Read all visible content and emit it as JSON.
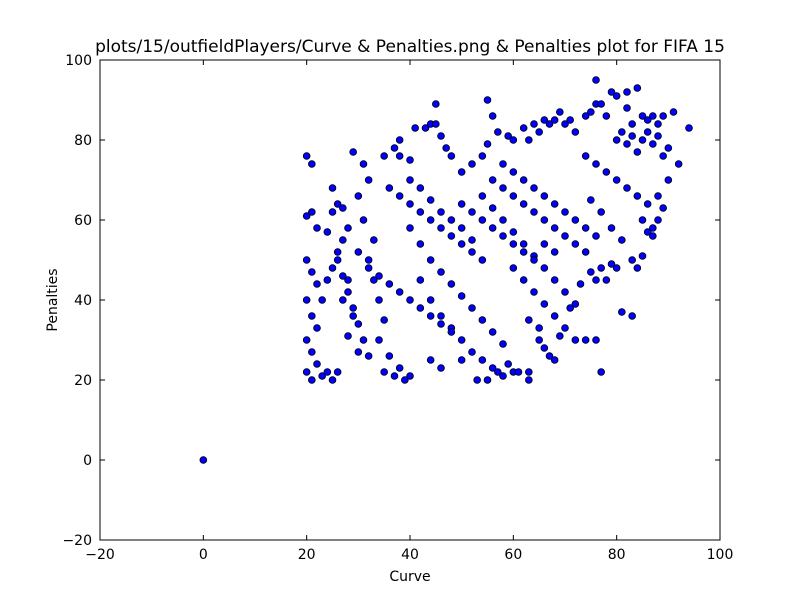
{
  "chart_data": {
    "type": "scatter",
    "title": "plots/15/outfieldPlayers/Curve & Penalties.png & Penalties plot for FIFA 15",
    "xlabel": "Curve",
    "ylabel": "Penalties",
    "xlim": [
      -20,
      100
    ],
    "ylim": [
      -20,
      100
    ],
    "xticks": [
      -20,
      0,
      20,
      40,
      60,
      80,
      100
    ],
    "yticks": [
      -20,
      0,
      20,
      40,
      60,
      80,
      100
    ],
    "xtick_labels": [
      "−20",
      "0",
      "20",
      "40",
      "60",
      "80",
      "100"
    ],
    "ytick_labels": [
      "−20",
      "0",
      "20",
      "40",
      "60",
      "80",
      "100"
    ],
    "grid": false,
    "marker_color": "#0000ff",
    "marker_edge_color": "#000000",
    "series": [
      {
        "points": [
          [
            0,
            0
          ],
          [
            20,
            76
          ],
          [
            21,
            74
          ],
          [
            20,
            61
          ],
          [
            21,
            62
          ],
          [
            22,
            58
          ],
          [
            20,
            50
          ],
          [
            21,
            47
          ],
          [
            22,
            44
          ],
          [
            20,
            40
          ],
          [
            21,
            36
          ],
          [
            22,
            33
          ],
          [
            20,
            30
          ],
          [
            21,
            27
          ],
          [
            22,
            24
          ],
          [
            20,
            22
          ],
          [
            21,
            20
          ],
          [
            23,
            21
          ],
          [
            24,
            22
          ],
          [
            25,
            20
          ],
          [
            26,
            22
          ],
          [
            25,
            62
          ],
          [
            26,
            64
          ],
          [
            24,
            57
          ],
          [
            25,
            68
          ],
          [
            27,
            63
          ],
          [
            28,
            58
          ],
          [
            27,
            55
          ],
          [
            26,
            50
          ],
          [
            28,
            45
          ],
          [
            27,
            40
          ],
          [
            29,
            36
          ],
          [
            28,
            31
          ],
          [
            30,
            27
          ],
          [
            29,
            77
          ],
          [
            31,
            74
          ],
          [
            32,
            70
          ],
          [
            30,
            66
          ],
          [
            31,
            60
          ],
          [
            33,
            55
          ],
          [
            32,
            50
          ],
          [
            33,
            45
          ],
          [
            34,
            40
          ],
          [
            35,
            35
          ],
          [
            34,
            30
          ],
          [
            36,
            26
          ],
          [
            35,
            22
          ],
          [
            37,
            21
          ],
          [
            38,
            23
          ],
          [
            39,
            20
          ],
          [
            40,
            21
          ],
          [
            35,
            76
          ],
          [
            37,
            78
          ],
          [
            38,
            80
          ],
          [
            38,
            76
          ],
          [
            40,
            75
          ],
          [
            41,
            83
          ],
          [
            43,
            83
          ],
          [
            44,
            84
          ],
          [
            45,
            84
          ],
          [
            45,
            89
          ],
          [
            46,
            81
          ],
          [
            47,
            78
          ],
          [
            48,
            76
          ],
          [
            40,
            70
          ],
          [
            42,
            68
          ],
          [
            44,
            65
          ],
          [
            46,
            62
          ],
          [
            48,
            60
          ],
          [
            50,
            58
          ],
          [
            52,
            55
          ],
          [
            40,
            58
          ],
          [
            42,
            54
          ],
          [
            44,
            50
          ],
          [
            46,
            47
          ],
          [
            48,
            44
          ],
          [
            50,
            41
          ],
          [
            52,
            38
          ],
          [
            54,
            35
          ],
          [
            56,
            32
          ],
          [
            58,
            29
          ],
          [
            42,
            45
          ],
          [
            44,
            40
          ],
          [
            46,
            36
          ],
          [
            48,
            33
          ],
          [
            50,
            30
          ],
          [
            52,
            27
          ],
          [
            54,
            25
          ],
          [
            56,
            23
          ],
          [
            58,
            21
          ],
          [
            60,
            22
          ],
          [
            44,
            25
          ],
          [
            46,
            23
          ],
          [
            50,
            25
          ],
          [
            53,
            20
          ],
          [
            55,
            20
          ],
          [
            57,
            22
          ],
          [
            59,
            24
          ],
          [
            61,
            22
          ],
          [
            63,
            20
          ],
          [
            63,
            22
          ],
          [
            50,
            72
          ],
          [
            52,
            74
          ],
          [
            54,
            76
          ],
          [
            55,
            79
          ],
          [
            55,
            90
          ],
          [
            56,
            86
          ],
          [
            57,
            82
          ],
          [
            59,
            81
          ],
          [
            60,
            80
          ],
          [
            62,
            83
          ],
          [
            63,
            80
          ],
          [
            64,
            84
          ],
          [
            65,
            82
          ],
          [
            66,
            85
          ],
          [
            67,
            84
          ],
          [
            68,
            85
          ],
          [
            69,
            87
          ],
          [
            70,
            84
          ],
          [
            71,
            85
          ],
          [
            72,
            82
          ],
          [
            54,
            66
          ],
          [
            56,
            63
          ],
          [
            58,
            60
          ],
          [
            60,
            57
          ],
          [
            62,
            54
          ],
          [
            64,
            51
          ],
          [
            66,
            48
          ],
          [
            68,
            45
          ],
          [
            70,
            42
          ],
          [
            72,
            39
          ],
          [
            56,
            70
          ],
          [
            58,
            68
          ],
          [
            60,
            66
          ],
          [
            62,
            64
          ],
          [
            64,
            62
          ],
          [
            66,
            60
          ],
          [
            68,
            58
          ],
          [
            70,
            56
          ],
          [
            72,
            54
          ],
          [
            74,
            52
          ],
          [
            60,
            48
          ],
          [
            62,
            45
          ],
          [
            64,
            42
          ],
          [
            66,
            39
          ],
          [
            68,
            36
          ],
          [
            70,
            33
          ],
          [
            72,
            30
          ],
          [
            74,
            30
          ],
          [
            65,
            30
          ],
          [
            66,
            28
          ],
          [
            63,
            35
          ],
          [
            65,
            33
          ],
          [
            67,
            26
          ],
          [
            68,
            25
          ],
          [
            69,
            31
          ],
          [
            71,
            38
          ],
          [
            73,
            44
          ],
          [
            75,
            47
          ],
          [
            76,
            45
          ],
          [
            77,
            48
          ],
          [
            74,
            86
          ],
          [
            75,
            87
          ],
          [
            76,
            89
          ],
          [
            76,
            95
          ],
          [
            77,
            89
          ],
          [
            78,
            86
          ],
          [
            79,
            92
          ],
          [
            80,
            91
          ],
          [
            82,
            88
          ],
          [
            82,
            92
          ],
          [
            83,
            84
          ],
          [
            84,
            93
          ],
          [
            85,
            86
          ],
          [
            86,
            85
          ],
          [
            87,
            86
          ],
          [
            88,
            84
          ],
          [
            89,
            86
          ],
          [
            91,
            87
          ],
          [
            92,
            74
          ],
          [
            94,
            83
          ],
          [
            74,
            76
          ],
          [
            76,
            74
          ],
          [
            78,
            72
          ],
          [
            80,
            70
          ],
          [
            82,
            68
          ],
          [
            84,
            66
          ],
          [
            86,
            64
          ],
          [
            88,
            60
          ],
          [
            90,
            70
          ],
          [
            87,
            56
          ],
          [
            75,
            65
          ],
          [
            77,
            62
          ],
          [
            79,
            58
          ],
          [
            81,
            55
          ],
          [
            83,
            50
          ],
          [
            84,
            48
          ],
          [
            85,
            51
          ],
          [
            80,
            48
          ],
          [
            78,
            45
          ],
          [
            79,
            49
          ],
          [
            81,
            37
          ],
          [
            83,
            36
          ],
          [
            76,
            30
          ],
          [
            77,
            22
          ],
          [
            85,
            60
          ],
          [
            86,
            57
          ],
          [
            87,
            58
          ],
          [
            88,
            66
          ],
          [
            89,
            63
          ],
          [
            90,
            78
          ],
          [
            84,
            77
          ],
          [
            85,
            80
          ],
          [
            86,
            82
          ],
          [
            87,
            79
          ],
          [
            88,
            81
          ],
          [
            89,
            76
          ],
          [
            80,
            80
          ],
          [
            81,
            82
          ],
          [
            82,
            79
          ],
          [
            83,
            81
          ],
          [
            36,
            68
          ],
          [
            38,
            66
          ],
          [
            40,
            64
          ],
          [
            42,
            62
          ],
          [
            44,
            60
          ],
          [
            46,
            58
          ],
          [
            48,
            56
          ],
          [
            50,
            54
          ],
          [
            52,
            52
          ],
          [
            54,
            50
          ],
          [
            30,
            52
          ],
          [
            32,
            48
          ],
          [
            34,
            46
          ],
          [
            36,
            44
          ],
          [
            38,
            42
          ],
          [
            40,
            40
          ],
          [
            42,
            38
          ],
          [
            44,
            36
          ],
          [
            46,
            34
          ],
          [
            48,
            32
          ],
          [
            23,
            40
          ],
          [
            24,
            45
          ],
          [
            25,
            48
          ],
          [
            26,
            52
          ],
          [
            27,
            46
          ],
          [
            28,
            42
          ],
          [
            29,
            38
          ],
          [
            30,
            34
          ],
          [
            31,
            30
          ],
          [
            32,
            26
          ],
          [
            58,
            74
          ],
          [
            60,
            72
          ],
          [
            62,
            70
          ],
          [
            64,
            68
          ],
          [
            66,
            66
          ],
          [
            68,
            64
          ],
          [
            70,
            62
          ],
          [
            72,
            60
          ],
          [
            74,
            58
          ],
          [
            76,
            56
          ],
          [
            50,
            64
          ],
          [
            52,
            62
          ],
          [
            54,
            60
          ],
          [
            56,
            58
          ],
          [
            58,
            56
          ],
          [
            60,
            54
          ],
          [
            62,
            52
          ],
          [
            64,
            50
          ],
          [
            66,
            54
          ],
          [
            68,
            52
          ]
        ]
      }
    ]
  }
}
